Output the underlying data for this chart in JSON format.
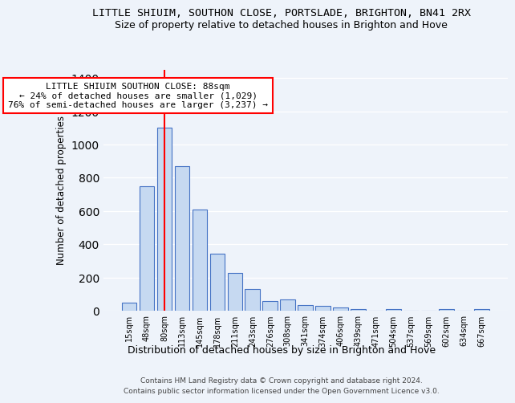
{
  "title": "LITTLE SHIUIM, SOUTHON CLOSE, PORTSLADE, BRIGHTON, BN41 2RX",
  "subtitle": "Size of property relative to detached houses in Brighton and Hove",
  "xlabel": "Distribution of detached houses by size in Brighton and Hove",
  "ylabel": "Number of detached properties",
  "categories": [
    "15sqm",
    "48sqm",
    "80sqm",
    "113sqm",
    "145sqm",
    "178sqm",
    "211sqm",
    "243sqm",
    "276sqm",
    "308sqm",
    "341sqm",
    "374sqm",
    "406sqm",
    "439sqm",
    "471sqm",
    "504sqm",
    "537sqm",
    "569sqm",
    "602sqm",
    "634sqm",
    "667sqm"
  ],
  "values": [
    48,
    750,
    1100,
    870,
    610,
    345,
    225,
    130,
    60,
    68,
    32,
    28,
    18,
    12,
    0,
    10,
    0,
    0,
    10,
    0,
    12
  ],
  "bar_color": "#c6d9f1",
  "bar_edge_color": "#4472c4",
  "red_line_x": 2,
  "annotation_text": "LITTLE SHIUIM SOUTHON CLOSE: 88sqm\n← 24% of detached houses are smaller (1,029)\n76% of semi-detached houses are larger (3,237) →",
  "annotation_box_color": "white",
  "annotation_box_edge_color": "red",
  "ylim": [
    0,
    1450
  ],
  "background_color": "#eef3fa",
  "plot_bg_color": "#eef3fa",
  "footer_line1": "Contains HM Land Registry data © Crown copyright and database right 2024.",
  "footer_line2": "Contains public sector information licensed under the Open Government Licence v3.0.",
  "title_fontsize": 9.5,
  "subtitle_fontsize": 9,
  "xlabel_fontsize": 9,
  "ylabel_fontsize": 8.5,
  "tick_fontsize": 7,
  "footer_fontsize": 6.5,
  "annotation_fontsize": 8
}
